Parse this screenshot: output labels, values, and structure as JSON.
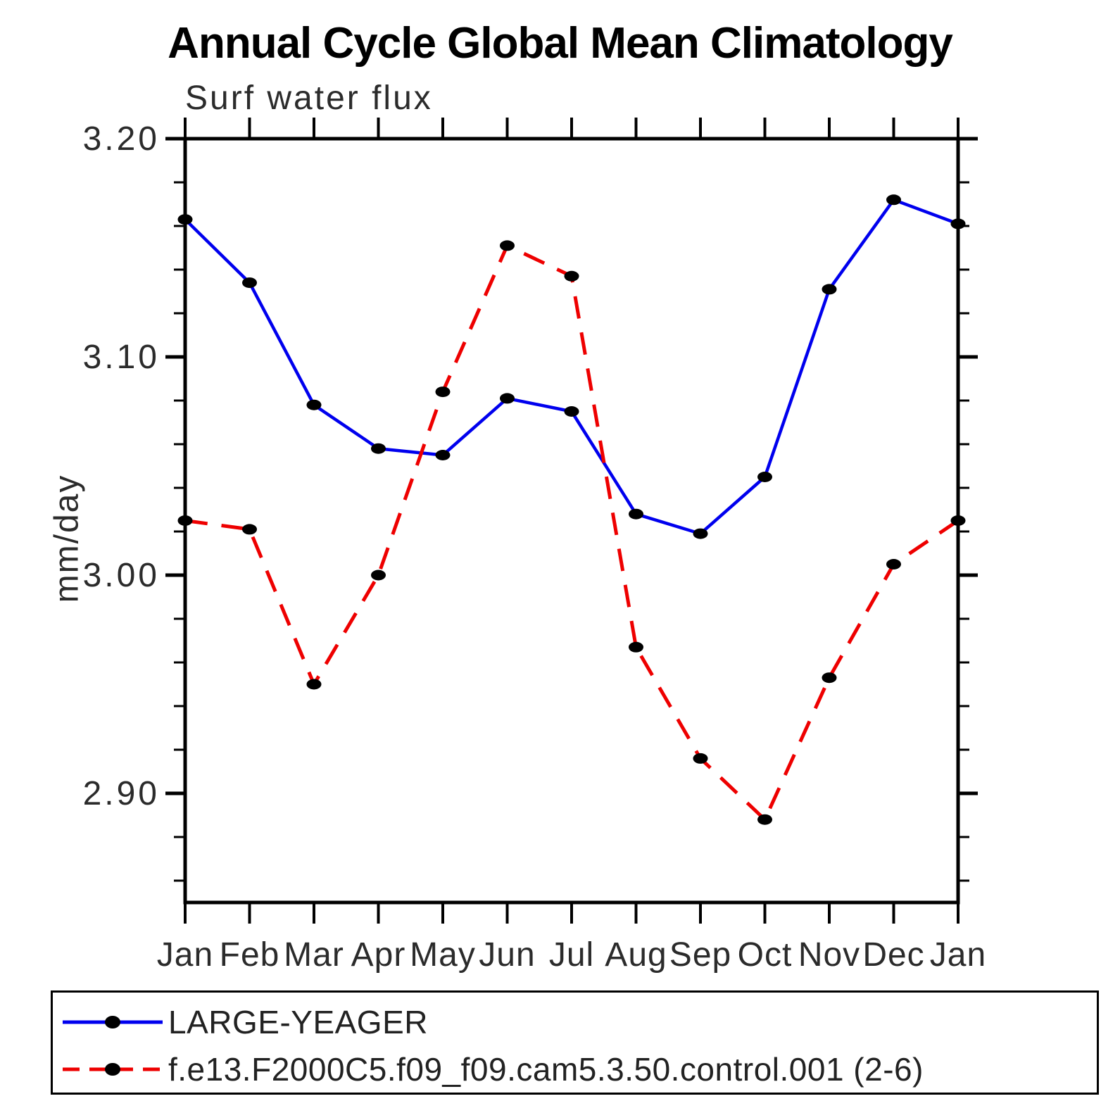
{
  "title": "Annual Cycle Global Mean Climatology",
  "chart_data": {
    "type": "line",
    "title": "Annual Cycle Global Mean Climatology",
    "subtitle": "Surf water flux",
    "ylabel": "mm/day",
    "xlabel": "",
    "categories": [
      "Jan",
      "Feb",
      "Mar",
      "Apr",
      "May",
      "Jun",
      "Jul",
      "Aug",
      "Sep",
      "Oct",
      "Nov",
      "Dec",
      "Jan"
    ],
    "ylim": [
      2.85,
      3.2
    ],
    "yticks_major": [
      2.9,
      3.0,
      3.1,
      3.2
    ],
    "ytick_labels": [
      "2.90",
      "3.00",
      "3.10",
      "3.20"
    ],
    "yminor_step": 0.02,
    "grid": false,
    "legend_position": "bottom-box",
    "axis_color": "#000000",
    "marker_color": "#000000",
    "series": [
      {
        "name": "LARGE-YEAGER",
        "color": "#0000ee",
        "style": "solid",
        "marker": "black-dot",
        "values": [
          3.163,
          3.134,
          3.078,
          3.058,
          3.055,
          3.081,
          3.075,
          3.028,
          3.019,
          3.045,
          3.131,
          3.172,
          3.161
        ]
      },
      {
        "name": "f.e13.F2000C5.f09_f09.cam5.3.50.control.001 (2-6)",
        "color": "#ee0000",
        "style": "dashed",
        "marker": "black-dot",
        "values": [
          3.025,
          3.021,
          2.95,
          3.0,
          3.084,
          3.151,
          3.137,
          2.967,
          2.916,
          2.888,
          2.953,
          3.005,
          3.025
        ]
      }
    ]
  }
}
